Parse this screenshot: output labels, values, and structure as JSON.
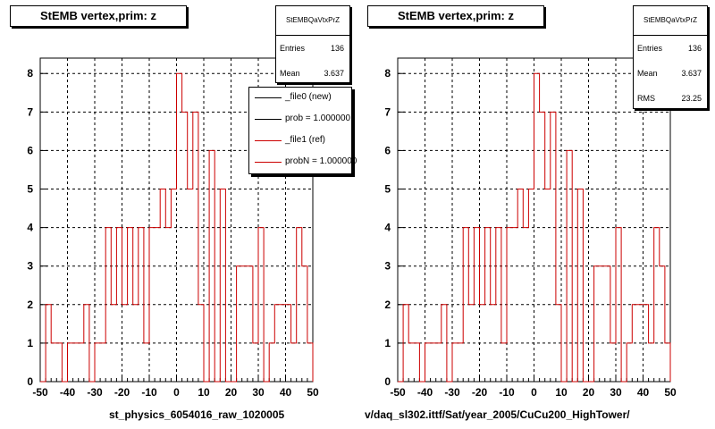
{
  "chart_data": [
    {
      "type": "histogram",
      "title": "StEMB  vertex,prim: z",
      "xlim": [
        -50,
        50
      ],
      "ylim": [
        0,
        8.4
      ],
      "x_ticks": [
        "-50",
        "-40",
        "-30",
        "-20",
        "-10",
        "0",
        "10",
        "20",
        "30",
        "40",
        "50"
      ],
      "y_ticks": [
        "0",
        "1",
        "2",
        "3",
        "4",
        "5",
        "6",
        "7",
        "8"
      ],
      "grid": true,
      "bin_edges": [
        -50,
        -48,
        -46,
        -44,
        -42,
        -40,
        -38,
        -36,
        -34,
        -32,
        -30,
        -28,
        -26,
        -24,
        -22,
        -20,
        -18,
        -16,
        -14,
        -12,
        -10,
        -8,
        -6,
        -4,
        -2,
        0,
        2,
        4,
        6,
        8,
        10,
        12,
        14,
        16,
        18,
        20,
        22,
        24,
        26,
        28,
        30,
        32,
        34,
        36,
        38,
        40,
        42,
        44,
        46,
        48,
        50
      ],
      "series": [
        {
          "name": "_file1 (ref)",
          "color": "#cc0000",
          "values": [
            0,
            2,
            1,
            1,
            0,
            1,
            1,
            1,
            2,
            0,
            1,
            1,
            4,
            2,
            4,
            2,
            4,
            2,
            4,
            1,
            4,
            4,
            5,
            4,
            5,
            8,
            7,
            5,
            7,
            2,
            0,
            6,
            0,
            5,
            0,
            0,
            3,
            3,
            3,
            1,
            4,
            0,
            1,
            2,
            2,
            2,
            1,
            4,
            3,
            1
          ]
        }
      ],
      "stats": {
        "title": "StEMBQaVtxPrZ",
        "rows": [
          {
            "label": "Entries",
            "value": "136"
          },
          {
            "label": "Mean",
            "value": "3.637"
          }
        ]
      },
      "legend": {
        "placement": "top-right",
        "items": [
          {
            "label": "_file0 (new)",
            "color": "#000000"
          },
          {
            "label": "prob = 1.000000",
            "color": "#000000"
          },
          {
            "label": "_file1 (ref)",
            "color": "#cc0000"
          },
          {
            "label": "probN = 1.000000",
            "color": "#cc0000"
          }
        ]
      },
      "footer": "st_physics_6054016_raw_1020005"
    },
    {
      "type": "histogram",
      "title": "StEMB  vertex,prim: z",
      "xlim": [
        -50,
        50
      ],
      "ylim": [
        0,
        8.4
      ],
      "x_ticks": [
        "-50",
        "-40",
        "-30",
        "-20",
        "-10",
        "0",
        "10",
        "20",
        "30",
        "40",
        "50"
      ],
      "y_ticks": [
        "0",
        "1",
        "2",
        "3",
        "4",
        "5",
        "6",
        "7",
        "8"
      ],
      "grid": true,
      "bin_edges": [
        -50,
        -48,
        -46,
        -44,
        -42,
        -40,
        -38,
        -36,
        -34,
        -32,
        -30,
        -28,
        -26,
        -24,
        -22,
        -20,
        -18,
        -16,
        -14,
        -12,
        -10,
        -8,
        -6,
        -4,
        -2,
        0,
        2,
        4,
        6,
        8,
        10,
        12,
        14,
        16,
        18,
        20,
        22,
        24,
        26,
        28,
        30,
        32,
        34,
        36,
        38,
        40,
        42,
        44,
        46,
        48,
        50
      ],
      "series": [
        {
          "color": "#cc0000",
          "values": [
            0,
            2,
            1,
            1,
            0,
            1,
            1,
            1,
            2,
            0,
            1,
            1,
            4,
            2,
            4,
            2,
            4,
            2,
            4,
            1,
            4,
            4,
            5,
            4,
            5,
            8,
            7,
            5,
            7,
            2,
            0,
            6,
            0,
            5,
            0,
            0,
            3,
            3,
            3,
            1,
            4,
            0,
            1,
            2,
            2,
            2,
            1,
            4,
            3,
            1
          ]
        }
      ],
      "stats": {
        "title": "StEMBQaVtxPrZ",
        "rows": [
          {
            "label": "Entries",
            "value": "136"
          },
          {
            "label": "Mean",
            "value": "3.637"
          },
          {
            "label": "RMS",
            "value": "23.25"
          }
        ]
      },
      "footer": "v/daq_sl302.ittf/Sat/year_2005/CuCu200_HighTower/"
    }
  ]
}
